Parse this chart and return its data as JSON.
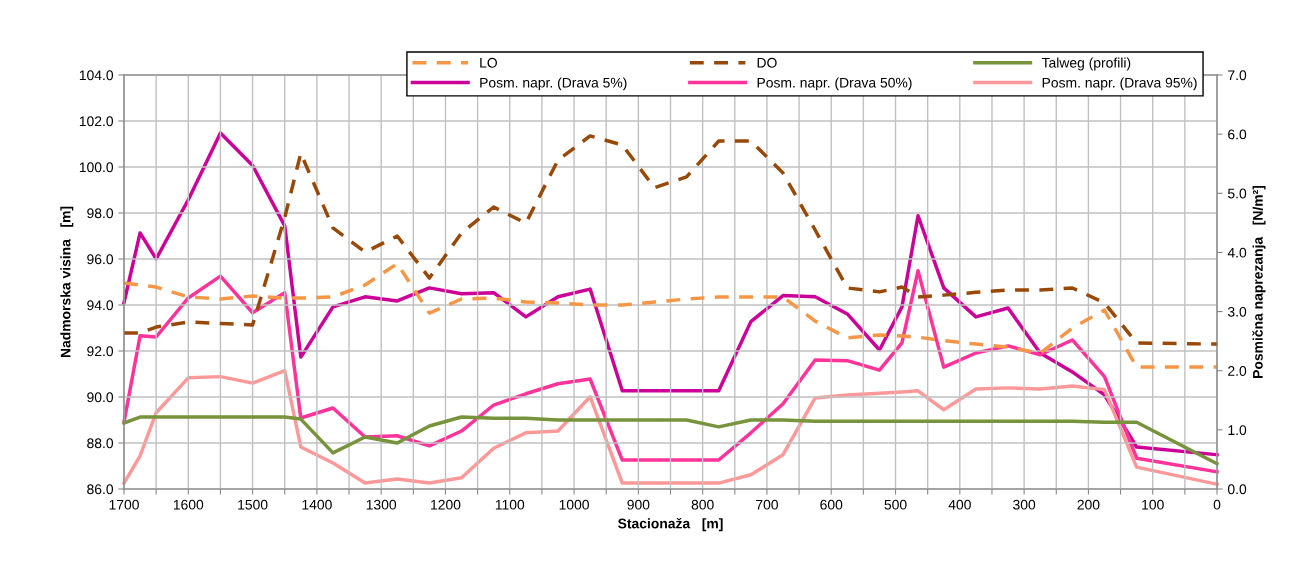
{
  "chart_data": {
    "type": "line",
    "xlabel": "Stacionaža   [m]",
    "ylabel": "Nadmorska visina   [m]",
    "y2label": "Posmična naprezanja   [N/m²]",
    "x": [
      1700,
      1675,
      1650,
      1600,
      1550,
      1500,
      1450,
      1425,
      1375,
      1325,
      1275,
      1225,
      1175,
      1125,
      1075,
      1025,
      975,
      925,
      875,
      825,
      775,
      725,
      675,
      625,
      575,
      525,
      490,
      465,
      425,
      375,
      325,
      275,
      225,
      175,
      125,
      0
    ],
    "xlim": [
      1700,
      0
    ],
    "xticks": [
      1700,
      {
        "value": 1650,
        "label": null
      },
      1600,
      {
        "value": 1550,
        "label": null
      },
      1500,
      {
        "value": 1450,
        "label": null
      },
      1400,
      {
        "value": 1350,
        "label": null
      },
      1300,
      {
        "value": 1250,
        "label": null
      },
      1200,
      {
        "value": 1150,
        "label": null
      },
      1100,
      {
        "value": 1050,
        "label": null
      },
      1000,
      {
        "value": 950,
        "label": null
      },
      900,
      {
        "value": 850,
        "label": null
      },
      800,
      {
        "value": 750,
        "label": null
      },
      700,
      {
        "value": 650,
        "label": null
      },
      600,
      {
        "value": 550,
        "label": null
      },
      500,
      {
        "value": 450,
        "label": null
      },
      400,
      {
        "value": 350,
        "label": null
      },
      300,
      {
        "value": 250,
        "label": null
      },
      200,
      {
        "value": 150,
        "label": null
      },
      100,
      {
        "value": 50,
        "label": null
      },
      0
    ],
    "ylim": [
      86,
      104
    ],
    "yticks": [
      {
        "value": 86,
        "label": "86.0"
      },
      {
        "value": 88,
        "label": "88.0"
      },
      {
        "value": 90,
        "label": "90.0"
      },
      {
        "value": 92,
        "label": "92.0"
      },
      {
        "value": 94,
        "label": "94.0"
      },
      {
        "value": 96,
        "label": "96.0"
      },
      {
        "value": 98,
        "label": "98.0"
      },
      {
        "value": 100,
        "label": "100.0"
      },
      {
        "value": 102,
        "label": "102.0"
      },
      {
        "value": 104,
        "label": "104.0"
      }
    ],
    "y2lim": [
      0,
      7
    ],
    "y2ticks": [
      {
        "value": 0,
        "label": "0.0"
      },
      {
        "value": 1,
        "label": "1.0"
      },
      {
        "value": 2,
        "label": "2.0"
      },
      {
        "value": 3,
        "label": "3.0"
      },
      {
        "value": 4,
        "label": "4.0"
      },
      {
        "value": 5,
        "label": "5.0"
      },
      {
        "value": 6,
        "label": "6.0"
      },
      {
        "value": 7,
        "label": "7.0"
      }
    ],
    "grid": true,
    "legend": "top right",
    "marker": "none",
    "series": [
      {
        "name": "LO",
        "color": "#f79646",
        "line_style": "dashed",
        "values": [
          94.96,
          94.87,
          94.78,
          94.35,
          94.26,
          94.39,
          94.3,
          94.3,
          94.35,
          94.87,
          95.8,
          93.65,
          94.26,
          94.3,
          94.13,
          94.09,
          94.0,
          94.0,
          94.13,
          94.26,
          94.35,
          94.35,
          94.35,
          93.3,
          92.57,
          92.7,
          92.65,
          92.6,
          92.45,
          92.3,
          92.17,
          91.9,
          93.0,
          93.78,
          91.3,
          91.3
        ]
      },
      {
        "name": "DO",
        "color": "#984807",
        "line_style": "dashed",
        "values": [
          92.78,
          92.78,
          93.04,
          93.26,
          93.2,
          93.13,
          97.8,
          100.6,
          97.35,
          96.3,
          97.0,
          95.17,
          97.13,
          98.26,
          97.56,
          100.3,
          101.35,
          100.96,
          99.1,
          99.57,
          101.13,
          101.13,
          99.74,
          97.26,
          94.74,
          94.57,
          94.78,
          94.35,
          94.43,
          94.55,
          94.65,
          94.65,
          94.74,
          94.09,
          92.35,
          92.3
        ]
      },
      {
        "name": "Talweg (profili)",
        "color": "#77933c",
        "line_style": "solid",
        "values": [
          88.87,
          89.13,
          89.13,
          89.13,
          89.13,
          89.13,
          89.13,
          89.04,
          87.57,
          88.26,
          88.0,
          88.74,
          89.13,
          89.08,
          89.08,
          89.0,
          89.0,
          89.0,
          89.0,
          89.0,
          88.7,
          89.0,
          89.0,
          88.95,
          88.95,
          88.95,
          88.95,
          88.95,
          88.95,
          88.95,
          88.95,
          88.95,
          88.95,
          88.9,
          88.9,
          87.1
        ]
      },
      {
        "name": "Posm. napr. (Drava 5%)",
        "color": "#cc0099",
        "line_style": "solid",
        "axis": "y2",
        "values": [
          3.15,
          4.33,
          3.89,
          4.89,
          6.02,
          5.47,
          4.45,
          2.23,
          3.08,
          3.25,
          3.18,
          3.4,
          3.3,
          3.32,
          2.91,
          3.25,
          3.38,
          1.66,
          1.66,
          1.66,
          1.66,
          2.83,
          3.27,
          3.25,
          2.96,
          2.35,
          3.08,
          4.62,
          3.4,
          2.91,
          3.06,
          2.3,
          1.98,
          1.59,
          0.71,
          0.58
        ]
      },
      {
        "name": "Posm. napr. (Drava 50%)",
        "color": "#ff3399",
        "line_style": "solid",
        "axis": "y2",
        "values": [
          1.13,
          2.59,
          2.57,
          3.23,
          3.6,
          2.98,
          3.32,
          1.2,
          1.37,
          0.88,
          0.9,
          0.73,
          0.98,
          1.42,
          1.61,
          1.78,
          1.86,
          0.49,
          0.49,
          0.49,
          0.49,
          0.95,
          1.44,
          2.18,
          2.17,
          2.01,
          2.47,
          3.69,
          2.06,
          2.3,
          2.42,
          2.27,
          2.52,
          1.9,
          0.52,
          0.29
        ]
      },
      {
        "name": "Posm. napr. (Drava 95%)",
        "color": "#ff9999",
        "line_style": "solid",
        "axis": "y2",
        "values": [
          0.1,
          0.56,
          1.29,
          1.88,
          1.9,
          1.79,
          2.0,
          0.71,
          0.44,
          0.1,
          0.17,
          0.1,
          0.19,
          0.69,
          0.95,
          0.98,
          1.56,
          0.1,
          0.1,
          0.1,
          0.1,
          0.24,
          0.58,
          1.54,
          1.59,
          1.62,
          1.64,
          1.66,
          1.34,
          1.69,
          1.71,
          1.69,
          1.74,
          1.68,
          0.37,
          0.08
        ]
      }
    ]
  }
}
